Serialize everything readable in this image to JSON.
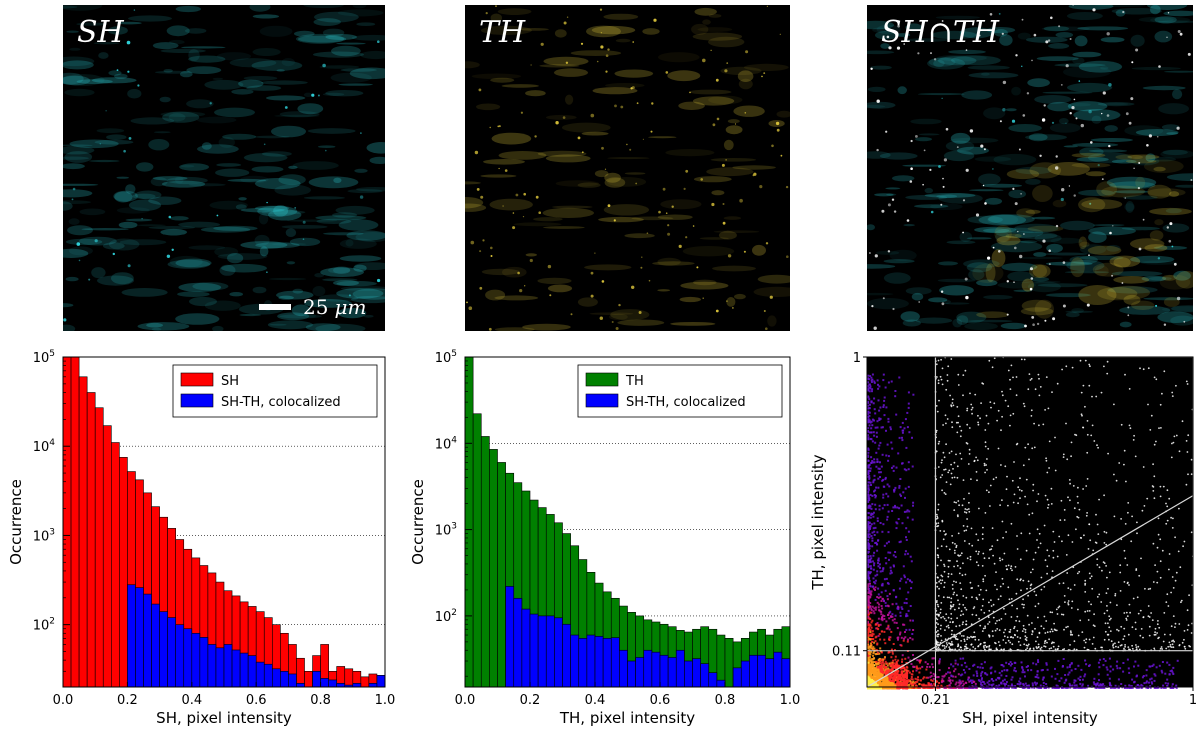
{
  "images": [
    {
      "label": "SH",
      "tint": "#2fd0d8"
    },
    {
      "label": "TH",
      "tint": "#d9c23a"
    },
    {
      "label": "SH∩TH",
      "tint": "#2fd0d8"
    }
  ],
  "scalebar": {
    "value": "25",
    "unit": "μm"
  },
  "chart_data": [
    {
      "type": "bar",
      "y_scale": "log",
      "xlabel": "SH, pixel intensity",
      "ylabel": "Occurrence",
      "xlim": [
        0,
        1
      ],
      "ylim": [
        20,
        100000
      ],
      "x_ticks": [
        "0.0",
        "0.2",
        "0.4",
        "0.6",
        "0.8",
        "1.0"
      ],
      "y_ticks": [
        "10^2",
        "10^3",
        "10^4",
        "10^5"
      ],
      "bin_width": 0.025,
      "legend_position": "top-right",
      "grid": "horizontal dotted",
      "series": [
        {
          "name": "SH",
          "color": "#ff0000",
          "values": [
            100000,
            100000,
            60000,
            40000,
            27000,
            17000,
            11000,
            7500,
            5200,
            4200,
            3000,
            2100,
            1600,
            1200,
            900,
            700,
            560,
            460,
            380,
            300,
            240,
            210,
            180,
            160,
            140,
            120,
            100,
            80,
            60,
            42,
            30,
            45,
            60,
            30,
            34,
            32,
            30,
            26,
            28,
            27
          ]
        },
        {
          "name": "SH-TH, colocalized",
          "color": "#0000ff",
          "values": [
            0,
            0,
            0,
            0,
            0,
            0,
            0,
            0,
            280,
            260,
            220,
            170,
            140,
            120,
            100,
            90,
            80,
            72,
            60,
            55,
            60,
            52,
            48,
            45,
            38,
            36,
            32,
            30,
            28,
            22,
            20,
            30,
            25,
            24,
            22,
            21,
            22,
            20,
            22,
            27
          ]
        }
      ]
    },
    {
      "type": "bar",
      "y_scale": "log",
      "xlabel": "TH, pixel intensity",
      "ylabel": "Occurrence",
      "xlim": [
        0,
        1
      ],
      "ylim": [
        15,
        100000
      ],
      "x_ticks": [
        "0.0",
        "0.2",
        "0.4",
        "0.6",
        "0.8",
        "1.0"
      ],
      "y_ticks": [
        "10^2",
        "10^3",
        "10^4",
        "10^5"
      ],
      "bin_width": 0.025,
      "legend_position": "top-right",
      "grid": "horizontal dotted",
      "series": [
        {
          "name": "TH",
          "color": "#008000",
          "values": [
            100000,
            22000,
            12000,
            8500,
            6000,
            4500,
            3500,
            2800,
            2200,
            1800,
            1500,
            1200,
            900,
            650,
            450,
            320,
            240,
            190,
            160,
            130,
            110,
            100,
            90,
            85,
            80,
            75,
            68,
            65,
            70,
            75,
            70,
            60,
            55,
            50,
            55,
            65,
            70,
            60,
            70,
            75
          ]
        },
        {
          "name": "SH-TH, colocalized",
          "color": "#0000ff",
          "values": [
            0,
            0,
            0,
            0,
            0,
            220,
            160,
            120,
            105,
            100,
            100,
            95,
            80,
            60,
            55,
            60,
            58,
            55,
            56,
            40,
            30,
            33,
            40,
            38,
            35,
            33,
            40,
            30,
            32,
            28,
            22,
            18,
            15,
            25,
            30,
            35,
            35,
            32,
            38,
            32
          ]
        }
      ]
    },
    {
      "type": "scatter",
      "xlabel": "SH, pixel intensity",
      "ylabel": "TH, pixel intensity",
      "xlim": [
        0,
        1
      ],
      "ylim": [
        0,
        1
      ],
      "x_ticks": [
        "0.21",
        "1"
      ],
      "y_ticks": [
        "0.11",
        "1"
      ],
      "thresholds": {
        "x": 0.21,
        "y": 0.11
      },
      "fit_line": {
        "x": [
          0,
          1
        ],
        "y": [
          0,
          0.58
        ]
      },
      "colormap": [
        "#fff04a",
        "#ff9a1a",
        "#ff2a28",
        "#c0129b",
        "#6a14d4",
        "#000000"
      ]
    }
  ]
}
